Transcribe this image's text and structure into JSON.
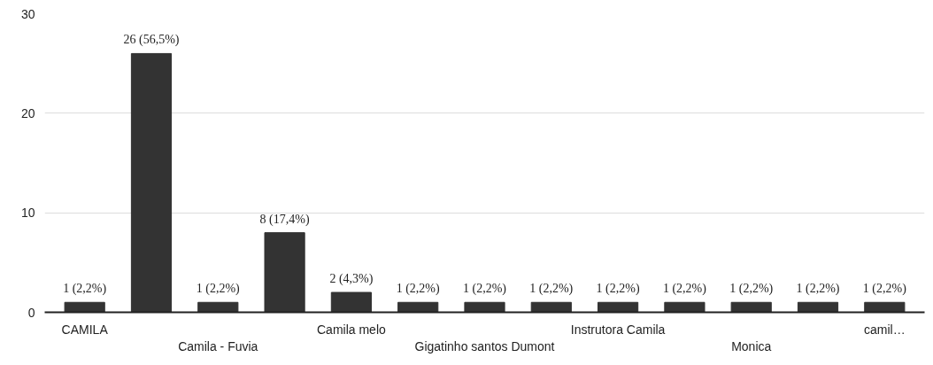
{
  "chart_data": {
    "type": "bar",
    "categories": [
      "CAMILA",
      null,
      "Camila - Fuvia",
      null,
      "Camila melo",
      null,
      "Gigatinho santos Dumont",
      null,
      "Instrutora Camila",
      null,
      "Monica",
      null,
      "camil…"
    ],
    "values": [
      1,
      26,
      1,
      8,
      2,
      1,
      1,
      1,
      1,
      1,
      1,
      1,
      1
    ],
    "value_labels": [
      "1 (2,2%)",
      "26 (56,5%)",
      "1 (2,2%)",
      "8 (17,4%)",
      "2 (4,3%)",
      "1 (2,2%)",
      "1 (2,2%)",
      "1 (2,2%)",
      "1 (2,2%)",
      "1 (2,2%)",
      "1 (2,2%)",
      "1 (2,2%)",
      "1 (2,2%)"
    ],
    "color": "#333333",
    "ylim": [
      0,
      30
    ],
    "yticks": [
      0,
      10,
      20,
      30
    ],
    "grid": "y"
  }
}
